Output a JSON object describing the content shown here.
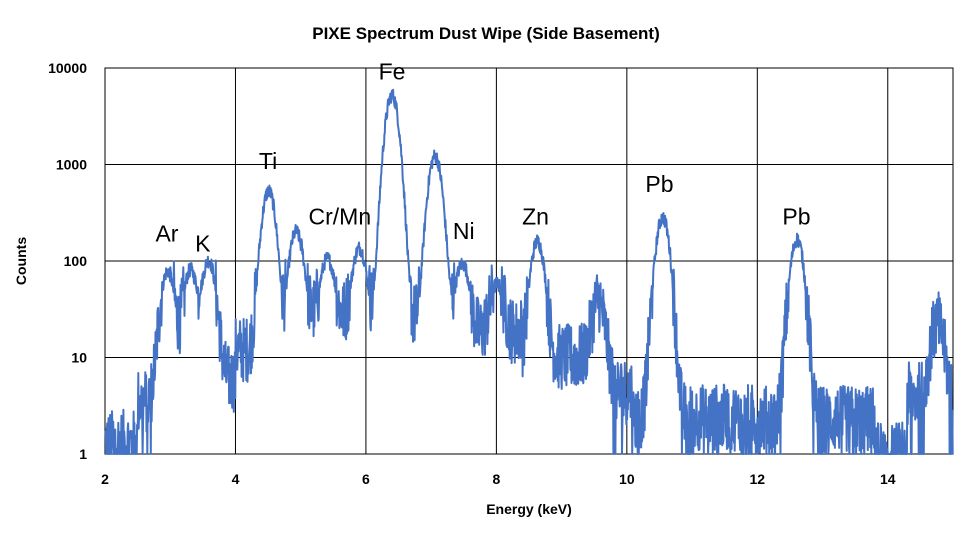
{
  "chart_data": {
    "type": "line",
    "title": "PIXE Spectrum Dust Wipe (Side Basement)",
    "xlabel": "Energy (keV)",
    "ylabel": "Counts",
    "xlim": [
      2,
      15
    ],
    "ylim": [
      1,
      10000
    ],
    "yscale": "log",
    "grid": true,
    "x_ticks": [
      2,
      4,
      6,
      8,
      10,
      12,
      14
    ],
    "y_ticks": [
      1,
      10,
      100,
      1000,
      10000
    ],
    "series_color": "#4472C4",
    "peaks": [
      {
        "label": "Ar",
        "energy": 2.96,
        "counts": 75
      },
      {
        "label": "K",
        "energy": 3.31,
        "counts": 75
      },
      {
        "label": "K",
        "energy": 3.59,
        "counts": 95
      },
      {
        "label": "Ti",
        "energy": 4.51,
        "counts": 520
      },
      {
        "label": "Ti",
        "energy": 4.93,
        "counts": 190
      },
      {
        "label": "Cr/Mn",
        "energy": 5.41,
        "counts": 80
      },
      {
        "label": "Cr/Mn",
        "energy": 5.9,
        "counts": 110
      },
      {
        "label": "Fe",
        "energy": 6.4,
        "counts": 5200
      },
      {
        "label": "Fe",
        "energy": 7.06,
        "counts": 1200
      },
      {
        "label": "Ni",
        "energy": 7.48,
        "counts": 70
      },
      {
        "label": "Ni",
        "energy": 8.01,
        "counts": 40
      },
      {
        "label": "Zn",
        "energy": 8.63,
        "counts": 150
      },
      {
        "label": "Zn",
        "energy": 9.57,
        "counts": 30
      },
      {
        "label": "Pb",
        "energy": 10.55,
        "counts": 280
      },
      {
        "label": "Pb",
        "energy": 12.61,
        "counts": 165
      },
      {
        "label": "Pb",
        "energy": 14.76,
        "counts": 18
      }
    ],
    "annotations": [
      {
        "text": "Ar",
        "x": 2.95,
        "y": 160
      },
      {
        "text": "K",
        "x": 3.5,
        "y": 125
      },
      {
        "text": "Ti",
        "x": 4.5,
        "y": 900
      },
      {
        "text": "Cr/Mn",
        "x": 5.6,
        "y": 240
      },
      {
        "text": "Fe",
        "x": 6.4,
        "y": 7600
      },
      {
        "text": "Ni",
        "x": 7.5,
        "y": 170
      },
      {
        "text": "Zn",
        "x": 8.6,
        "y": 240
      },
      {
        "text": "Pb",
        "x": 10.5,
        "y": 520
      },
      {
        "text": "Pb",
        "x": 12.6,
        "y": 240
      }
    ]
  }
}
